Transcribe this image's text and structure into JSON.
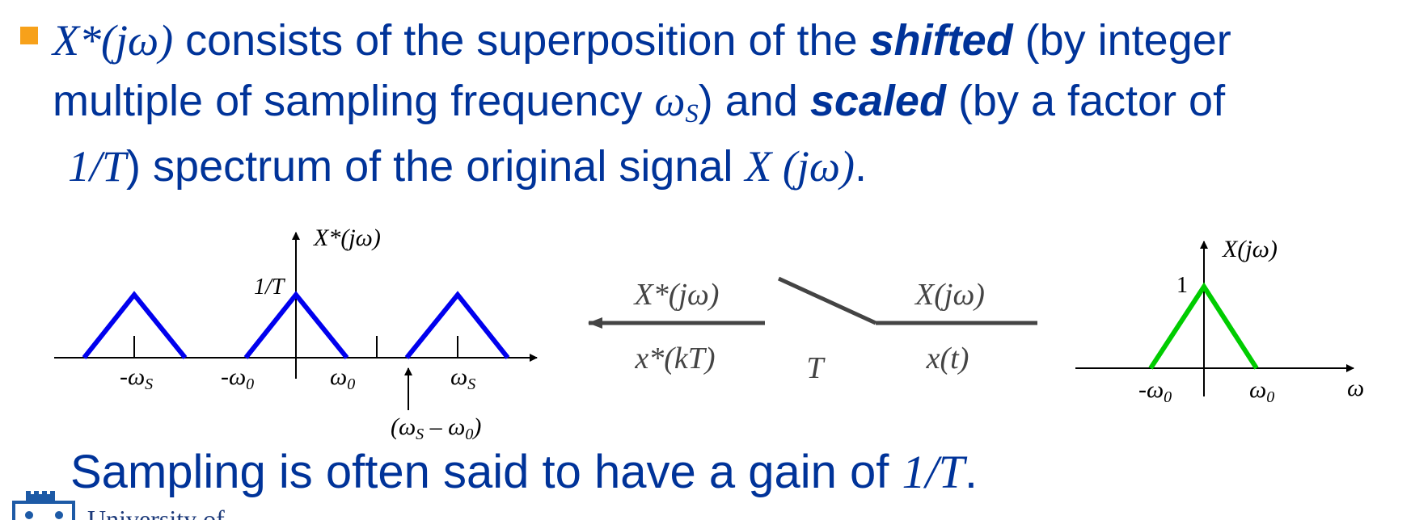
{
  "bullet": {
    "line1": {
      "math1": "X*(jω)",
      "t1": " consists of the superposition of the ",
      "em1": "shifted",
      "t2": " (by integer"
    },
    "line2": {
      "t1": "multiple of sampling frequency ",
      "math": "ω",
      "sub": "S",
      "t2": ") and ",
      "em2": "scaled",
      "t3": " (by a factor of"
    },
    "line3": {
      "math1": "1/T",
      "t1": ") spectrum of the original signal ",
      "math2": "X (jω)",
      "t2": "."
    }
  },
  "sampled_spectrum": {
    "title": "X*(jω)",
    "peak": "1/T",
    "labels": {
      "neg_ws": "-ω",
      "neg_w0": "-ω",
      "w0": "ω",
      "ws": "ω",
      "s": "S",
      "zero": "0",
      "alias": "(ω",
      "alias_mid": " – ω",
      "alias_end": ")"
    },
    "color": "#0000ee"
  },
  "sampler": {
    "out_top": "X*(jω)",
    "out_bottom": "x*(kT)",
    "in_top": "X(jω)",
    "in_bottom": "x(t)",
    "switch": "T"
  },
  "original_spectrum": {
    "title": "X(jω)",
    "peak": "1",
    "neg_w0": "-ω",
    "w0": "ω",
    "zero": "0",
    "axis": "ω",
    "color": "#00cc00"
  },
  "footer": {
    "t1": "Sampling is often said to have a gain of ",
    "math": "1/T",
    "t2": ".",
    "logo_text": "University of"
  },
  "colors": {
    "text": "#003399",
    "bullet": "#f7a11a"
  }
}
